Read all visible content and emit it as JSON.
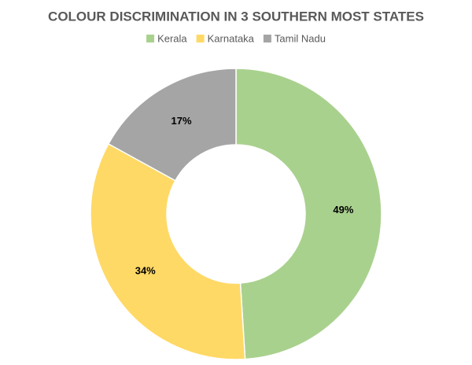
{
  "chart_data": {
    "type": "donut",
    "title": "COLOUR DISCRIMINATION IN 3 SOUTHERN MOST STATES",
    "categories": [
      "Kerala",
      "Karnataka",
      "Tamil Nadu"
    ],
    "values": [
      49,
      34,
      17
    ],
    "value_labels": [
      "49%",
      "34%",
      "17%"
    ],
    "colors": [
      "#a9d18e",
      "#ffd966",
      "#a5a5a5"
    ],
    "legend": "top"
  }
}
